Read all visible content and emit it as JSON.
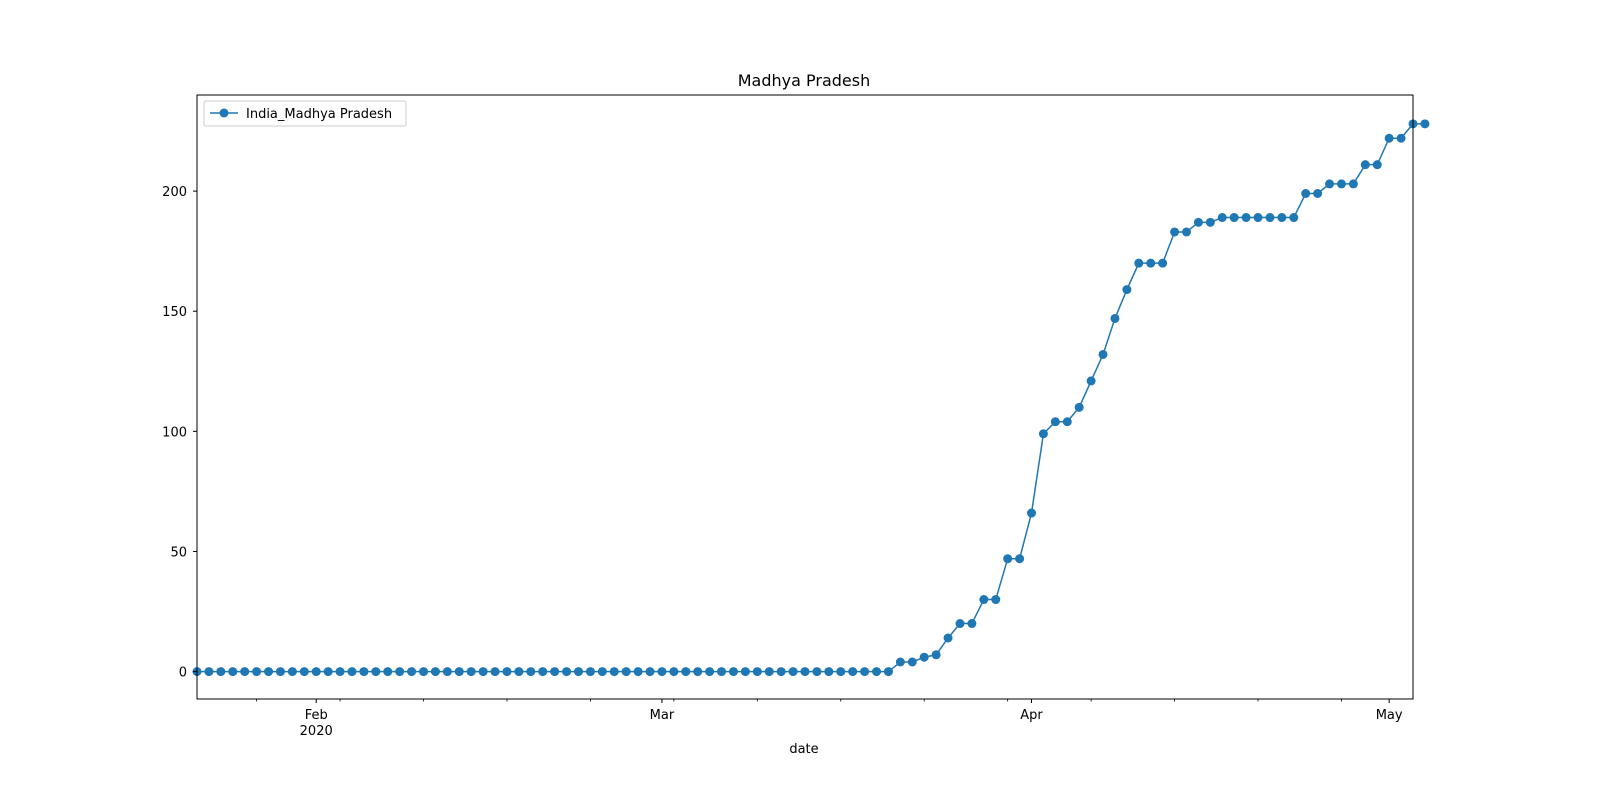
{
  "chart_data": {
    "type": "line",
    "title": "Madhya Pradesh",
    "xlabel": "date",
    "ylabel": "",
    "x_start": "2020-01-22",
    "x_end": "2020-05-03",
    "xlim": [
      "2020-01-22",
      "2020-05-03"
    ],
    "ylim": [
      -11.4,
      240
    ],
    "grid": false,
    "legend_position": "upper left",
    "x_ticks": [
      {
        "date": "2020-02-01",
        "label": "Feb",
        "sublabel": "2020"
      },
      {
        "date": "2020-03-01",
        "label": "Mar",
        "sublabel": ""
      },
      {
        "date": "2020-04-01",
        "label": "Apr",
        "sublabel": ""
      },
      {
        "date": "2020-05-01",
        "label": "May",
        "sublabel": ""
      }
    ],
    "y_ticks": [
      0,
      50,
      100,
      150,
      200
    ],
    "series": [
      {
        "name": "India_Madhya Pradesh",
        "color": "#1f77b4",
        "marker": "circle",
        "values": [
          0,
          0,
          0,
          0,
          0,
          0,
          0,
          0,
          0,
          0,
          0,
          0,
          0,
          0,
          0,
          0,
          0,
          0,
          0,
          0,
          0,
          0,
          0,
          0,
          0,
          0,
          0,
          0,
          0,
          0,
          0,
          0,
          0,
          0,
          0,
          0,
          0,
          0,
          0,
          0,
          0,
          0,
          0,
          0,
          0,
          0,
          0,
          0,
          0,
          0,
          0,
          0,
          0,
          0,
          0,
          0,
          0,
          0,
          0,
          4,
          4,
          6,
          7,
          14,
          20,
          20,
          30,
          30,
          47,
          47,
          66,
          99,
          104,
          104,
          110,
          121,
          132,
          147,
          159,
          170,
          170,
          170,
          183,
          183,
          187,
          187,
          189,
          189,
          189,
          189,
          189,
          189,
          189,
          199,
          199,
          203,
          203,
          203,
          211,
          211,
          222,
          222,
          228,
          228
        ]
      }
    ]
  }
}
